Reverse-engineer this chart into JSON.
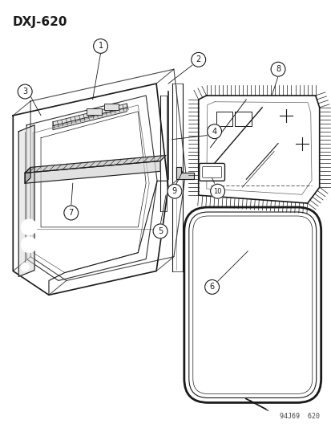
{
  "title": "DXJ-620",
  "watermark": "94J69  620",
  "bg_color": "#ffffff",
  "line_color": "#1a1a1a",
  "gray_color": "#888888",
  "light_gray": "#cccccc"
}
